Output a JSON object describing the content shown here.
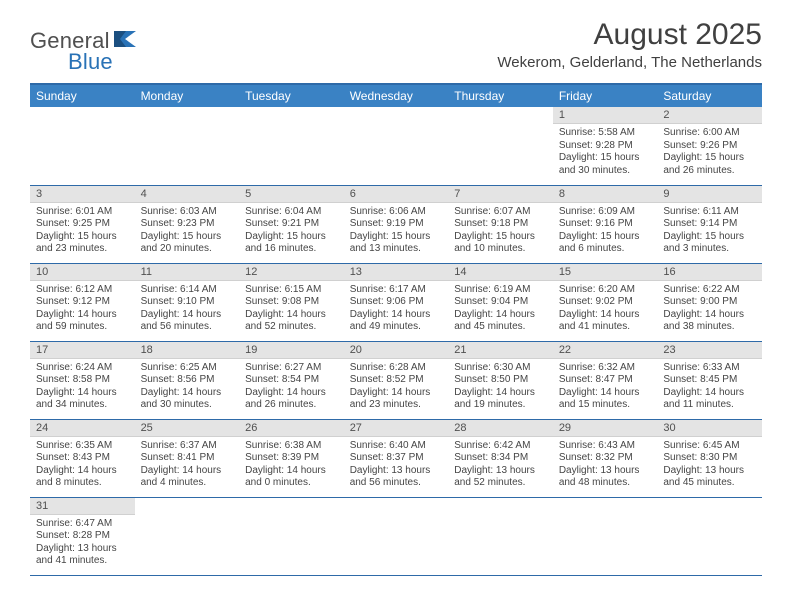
{
  "brand": {
    "part1": "General",
    "part2": "Blue"
  },
  "title": "August 2025",
  "location": "Wekerom, Gelderland, The Netherlands",
  "colors": {
    "header_bg": "#3a82c4",
    "week_border": "#2e6aa8",
    "daynum_bg": "#e4e4e4",
    "text": "#454545"
  },
  "day_headers": [
    "Sunday",
    "Monday",
    "Tuesday",
    "Wednesday",
    "Thursday",
    "Friday",
    "Saturday"
  ],
  "weeks": [
    [
      null,
      null,
      null,
      null,
      null,
      {
        "n": "1",
        "sr": "Sunrise: 5:58 AM",
        "ss": "Sunset: 9:28 PM",
        "dl1": "Daylight: 15 hours",
        "dl2": "and 30 minutes."
      },
      {
        "n": "2",
        "sr": "Sunrise: 6:00 AM",
        "ss": "Sunset: 9:26 PM",
        "dl1": "Daylight: 15 hours",
        "dl2": "and 26 minutes."
      }
    ],
    [
      {
        "n": "3",
        "sr": "Sunrise: 6:01 AM",
        "ss": "Sunset: 9:25 PM",
        "dl1": "Daylight: 15 hours",
        "dl2": "and 23 minutes."
      },
      {
        "n": "4",
        "sr": "Sunrise: 6:03 AM",
        "ss": "Sunset: 9:23 PM",
        "dl1": "Daylight: 15 hours",
        "dl2": "and 20 minutes."
      },
      {
        "n": "5",
        "sr": "Sunrise: 6:04 AM",
        "ss": "Sunset: 9:21 PM",
        "dl1": "Daylight: 15 hours",
        "dl2": "and 16 minutes."
      },
      {
        "n": "6",
        "sr": "Sunrise: 6:06 AM",
        "ss": "Sunset: 9:19 PM",
        "dl1": "Daylight: 15 hours",
        "dl2": "and 13 minutes."
      },
      {
        "n": "7",
        "sr": "Sunrise: 6:07 AM",
        "ss": "Sunset: 9:18 PM",
        "dl1": "Daylight: 15 hours",
        "dl2": "and 10 minutes."
      },
      {
        "n": "8",
        "sr": "Sunrise: 6:09 AM",
        "ss": "Sunset: 9:16 PM",
        "dl1": "Daylight: 15 hours",
        "dl2": "and 6 minutes."
      },
      {
        "n": "9",
        "sr": "Sunrise: 6:11 AM",
        "ss": "Sunset: 9:14 PM",
        "dl1": "Daylight: 15 hours",
        "dl2": "and 3 minutes."
      }
    ],
    [
      {
        "n": "10",
        "sr": "Sunrise: 6:12 AM",
        "ss": "Sunset: 9:12 PM",
        "dl1": "Daylight: 14 hours",
        "dl2": "and 59 minutes."
      },
      {
        "n": "11",
        "sr": "Sunrise: 6:14 AM",
        "ss": "Sunset: 9:10 PM",
        "dl1": "Daylight: 14 hours",
        "dl2": "and 56 minutes."
      },
      {
        "n": "12",
        "sr": "Sunrise: 6:15 AM",
        "ss": "Sunset: 9:08 PM",
        "dl1": "Daylight: 14 hours",
        "dl2": "and 52 minutes."
      },
      {
        "n": "13",
        "sr": "Sunrise: 6:17 AM",
        "ss": "Sunset: 9:06 PM",
        "dl1": "Daylight: 14 hours",
        "dl2": "and 49 minutes."
      },
      {
        "n": "14",
        "sr": "Sunrise: 6:19 AM",
        "ss": "Sunset: 9:04 PM",
        "dl1": "Daylight: 14 hours",
        "dl2": "and 45 minutes."
      },
      {
        "n": "15",
        "sr": "Sunrise: 6:20 AM",
        "ss": "Sunset: 9:02 PM",
        "dl1": "Daylight: 14 hours",
        "dl2": "and 41 minutes."
      },
      {
        "n": "16",
        "sr": "Sunrise: 6:22 AM",
        "ss": "Sunset: 9:00 PM",
        "dl1": "Daylight: 14 hours",
        "dl2": "and 38 minutes."
      }
    ],
    [
      {
        "n": "17",
        "sr": "Sunrise: 6:24 AM",
        "ss": "Sunset: 8:58 PM",
        "dl1": "Daylight: 14 hours",
        "dl2": "and 34 minutes."
      },
      {
        "n": "18",
        "sr": "Sunrise: 6:25 AM",
        "ss": "Sunset: 8:56 PM",
        "dl1": "Daylight: 14 hours",
        "dl2": "and 30 minutes."
      },
      {
        "n": "19",
        "sr": "Sunrise: 6:27 AM",
        "ss": "Sunset: 8:54 PM",
        "dl1": "Daylight: 14 hours",
        "dl2": "and 26 minutes."
      },
      {
        "n": "20",
        "sr": "Sunrise: 6:28 AM",
        "ss": "Sunset: 8:52 PM",
        "dl1": "Daylight: 14 hours",
        "dl2": "and 23 minutes."
      },
      {
        "n": "21",
        "sr": "Sunrise: 6:30 AM",
        "ss": "Sunset: 8:50 PM",
        "dl1": "Daylight: 14 hours",
        "dl2": "and 19 minutes."
      },
      {
        "n": "22",
        "sr": "Sunrise: 6:32 AM",
        "ss": "Sunset: 8:47 PM",
        "dl1": "Daylight: 14 hours",
        "dl2": "and 15 minutes."
      },
      {
        "n": "23",
        "sr": "Sunrise: 6:33 AM",
        "ss": "Sunset: 8:45 PM",
        "dl1": "Daylight: 14 hours",
        "dl2": "and 11 minutes."
      }
    ],
    [
      {
        "n": "24",
        "sr": "Sunrise: 6:35 AM",
        "ss": "Sunset: 8:43 PM",
        "dl1": "Daylight: 14 hours",
        "dl2": "and 8 minutes."
      },
      {
        "n": "25",
        "sr": "Sunrise: 6:37 AM",
        "ss": "Sunset: 8:41 PM",
        "dl1": "Daylight: 14 hours",
        "dl2": "and 4 minutes."
      },
      {
        "n": "26",
        "sr": "Sunrise: 6:38 AM",
        "ss": "Sunset: 8:39 PM",
        "dl1": "Daylight: 14 hours",
        "dl2": "and 0 minutes."
      },
      {
        "n": "27",
        "sr": "Sunrise: 6:40 AM",
        "ss": "Sunset: 8:37 PM",
        "dl1": "Daylight: 13 hours",
        "dl2": "and 56 minutes."
      },
      {
        "n": "28",
        "sr": "Sunrise: 6:42 AM",
        "ss": "Sunset: 8:34 PM",
        "dl1": "Daylight: 13 hours",
        "dl2": "and 52 minutes."
      },
      {
        "n": "29",
        "sr": "Sunrise: 6:43 AM",
        "ss": "Sunset: 8:32 PM",
        "dl1": "Daylight: 13 hours",
        "dl2": "and 48 minutes."
      },
      {
        "n": "30",
        "sr": "Sunrise: 6:45 AM",
        "ss": "Sunset: 8:30 PM",
        "dl1": "Daylight: 13 hours",
        "dl2": "and 45 minutes."
      }
    ],
    [
      {
        "n": "31",
        "sr": "Sunrise: 6:47 AM",
        "ss": "Sunset: 8:28 PM",
        "dl1": "Daylight: 13 hours",
        "dl2": "and 41 minutes."
      },
      null,
      null,
      null,
      null,
      null,
      null
    ]
  ]
}
